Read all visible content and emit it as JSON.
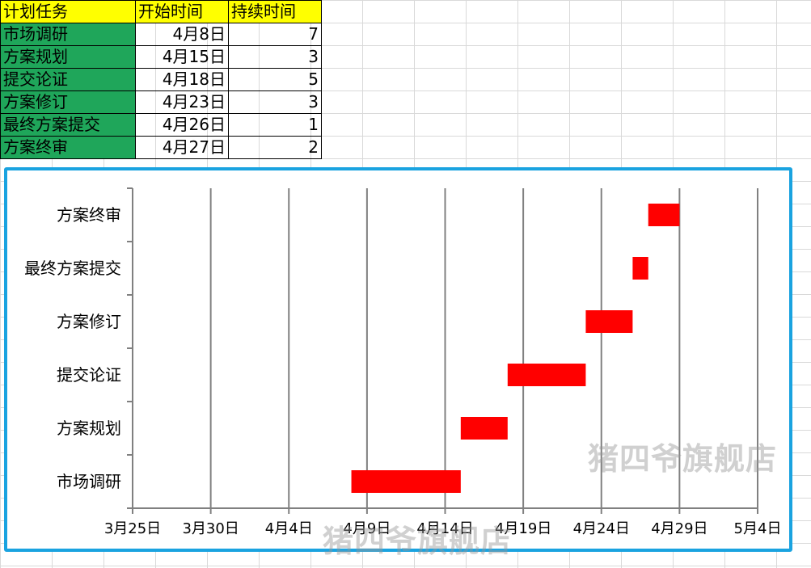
{
  "table": {
    "headers": [
      "计划任务",
      "开始时间",
      "持续时间"
    ],
    "rows": [
      {
        "task": "市场调研",
        "start": "4月8日",
        "duration": "7"
      },
      {
        "task": "方案规划",
        "start": "4月15日",
        "duration": "3"
      },
      {
        "task": "提交论证",
        "start": "4月18日",
        "duration": "5"
      },
      {
        "task": "方案修订",
        "start": "4月23日",
        "duration": "3"
      },
      {
        "task": "最终方案提交",
        "start": "4月26日",
        "duration": "1"
      },
      {
        "task": "方案终审",
        "start": "4月27日",
        "duration": "2"
      }
    ]
  },
  "chart_data": {
    "type": "bar",
    "orientation": "horizontal",
    "tasks": [
      "市场调研",
      "方案规划",
      "提交论证",
      "方案修订",
      "最终方案提交",
      "方案终审"
    ],
    "start": [
      "4/8",
      "4/15",
      "4/18",
      "4/23",
      "4/26",
      "4/27"
    ],
    "duration_days": [
      7,
      3,
      5,
      3,
      1,
      2
    ],
    "x_ticks": [
      "3月25日",
      "3月30日",
      "4月4日",
      "4月9日",
      "4月14日",
      "4月19日",
      "4月24日",
      "4月29日",
      "5月4日"
    ],
    "xlim": [
      "3/25",
      "5/4"
    ],
    "bar_color": "#ff0000",
    "grid": true
  },
  "watermark": {
    "text": "猪四爷旗舰店"
  },
  "colors": {
    "header_bg": "#ffff00",
    "task_bg": "#1fa65a",
    "frame": "#1aa3e0"
  }
}
